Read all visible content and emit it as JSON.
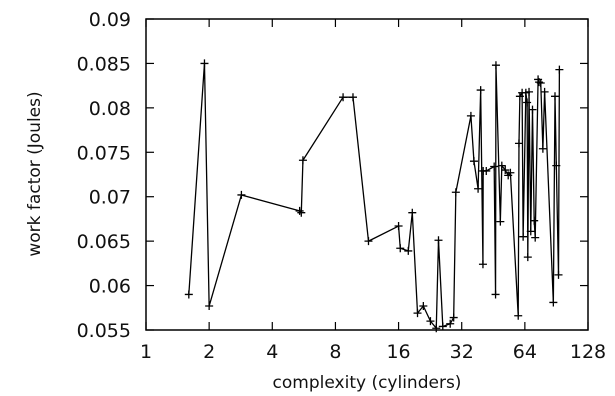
{
  "chart_data": {
    "type": "line",
    "xlabel": "complexity (cylinders)",
    "ylabel": "work factor (Joules)",
    "xscale": "log2",
    "xlim": [
      1,
      128
    ],
    "ylim": [
      0.055,
      0.09
    ],
    "grid": false,
    "legend": "none",
    "marker": "plus",
    "line_color": "#000000",
    "xticks": [
      {
        "value": 1,
        "label": "1"
      },
      {
        "value": 2,
        "label": "2"
      },
      {
        "value": 4,
        "label": "4"
      },
      {
        "value": 8,
        "label": "8"
      },
      {
        "value": 16,
        "label": "16"
      },
      {
        "value": 32,
        "label": "32"
      },
      {
        "value": 64,
        "label": "64"
      },
      {
        "value": 128,
        "label": "128"
      }
    ],
    "yticks": [
      {
        "value": 0.055,
        "label": "0.055"
      },
      {
        "value": 0.06,
        "label": "0.06"
      },
      {
        "value": 0.065,
        "label": "0.065"
      },
      {
        "value": 0.07,
        "label": "0.07"
      },
      {
        "value": 0.075,
        "label": "0.075"
      },
      {
        "value": 0.08,
        "label": "0.08"
      },
      {
        "value": 0.085,
        "label": "0.085"
      },
      {
        "value": 0.09,
        "label": "0.09"
      }
    ],
    "series": [
      {
        "points": [
          [
            1.6,
            0.059
          ],
          [
            1.9,
            0.085
          ],
          [
            2.0,
            0.0577
          ],
          [
            2.85,
            0.0702
          ],
          [
            5.4,
            0.0684
          ],
          [
            5.5,
            0.0682
          ],
          [
            5.6,
            0.0741
          ],
          [
            8.7,
            0.0812
          ],
          [
            9.7,
            0.0812
          ],
          [
            11.5,
            0.065
          ],
          [
            16.0,
            0.0667
          ],
          [
            16.3,
            0.0642
          ],
          [
            17.8,
            0.0639
          ],
          [
            18.6,
            0.0682
          ],
          [
            19.7,
            0.0569
          ],
          [
            21.0,
            0.0577
          ],
          [
            22.7,
            0.056
          ],
          [
            24.2,
            0.0552
          ],
          [
            24.8,
            0.0651
          ],
          [
            26.0,
            0.0554
          ],
          [
            28.2,
            0.0557
          ],
          [
            29.3,
            0.0564
          ],
          [
            30.0,
            0.0705
          ],
          [
            35.4,
            0.0791
          ],
          [
            36.6,
            0.074
          ],
          [
            38.3,
            0.0709
          ],
          [
            39.4,
            0.082
          ],
          [
            40.4,
            0.0624
          ],
          [
            40.5,
            0.0729
          ],
          [
            41.9,
            0.0729
          ],
          [
            45.7,
            0.0734
          ],
          [
            46.4,
            0.059
          ],
          [
            46.6,
            0.0848
          ],
          [
            48.9,
            0.0672
          ],
          [
            49.7,
            0.0735
          ],
          [
            51.6,
            0.073
          ],
          [
            53.3,
            0.0724
          ],
          [
            54.6,
            0.0727
          ],
          [
            59.5,
            0.0566
          ],
          [
            60.0,
            0.076
          ],
          [
            60.6,
            0.0813
          ],
          [
            62.1,
            0.0817
          ],
          [
            62.8,
            0.0655
          ],
          [
            64.7,
            0.0817
          ],
          [
            65.6,
            0.0806
          ],
          [
            66.1,
            0.0632
          ],
          [
            67.0,
            0.0818
          ],
          [
            68.3,
            0.0661
          ],
          [
            69.6,
            0.0798
          ],
          [
            70.9,
            0.0673
          ],
          [
            71.7,
            0.0654
          ],
          [
            74.0,
            0.0832
          ],
          [
            74.8,
            0.0829
          ],
          [
            76.2,
            0.0828
          ],
          [
            78.0,
            0.0754
          ],
          [
            79.5,
            0.0818
          ],
          [
            87.5,
            0.0581
          ],
          [
            89.1,
            0.0813
          ],
          [
            90.4,
            0.0735
          ],
          [
            92.6,
            0.0612
          ],
          [
            93.5,
            0.0843
          ]
        ]
      }
    ]
  }
}
